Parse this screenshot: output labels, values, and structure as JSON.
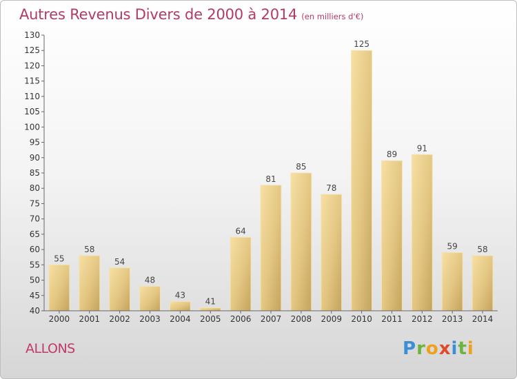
{
  "title": {
    "main": "Autres Revenus Divers de 2000 à 2014",
    "unit": "(en milliers d'€)"
  },
  "commune": "ALLONS",
  "logo": {
    "text": "Proxiti",
    "colors": [
      "#3a8fd6",
      "#6cb33f",
      "#f0a01e",
      "#e04a2a",
      "#3a8fd6",
      "#6cb33f",
      "#f0a01e"
    ]
  },
  "chart_data": {
    "type": "bar",
    "title": "Autres Revenus Divers de 2000 à 2014",
    "subtitle": "(en milliers d'€)",
    "xlabel": "",
    "ylabel": "",
    "categories": [
      "2000",
      "2001",
      "2002",
      "2003",
      "2004",
      "2005",
      "2006",
      "2007",
      "2008",
      "2009",
      "2010",
      "2011",
      "2012",
      "2013",
      "2014"
    ],
    "values": [
      55,
      58,
      54,
      48,
      43,
      41,
      64,
      81,
      85,
      78,
      125,
      89,
      91,
      59,
      58
    ],
    "ylim": [
      40,
      130
    ],
    "yticks": [
      40,
      45,
      50,
      55,
      60,
      65,
      70,
      75,
      80,
      85,
      90,
      95,
      100,
      105,
      110,
      115,
      120,
      125,
      130
    ],
    "grid": false,
    "legend": "none",
    "colors": {
      "bar_light": "#f6dea0",
      "bar_dark": "#c9ac66",
      "axis": "#555555"
    }
  }
}
